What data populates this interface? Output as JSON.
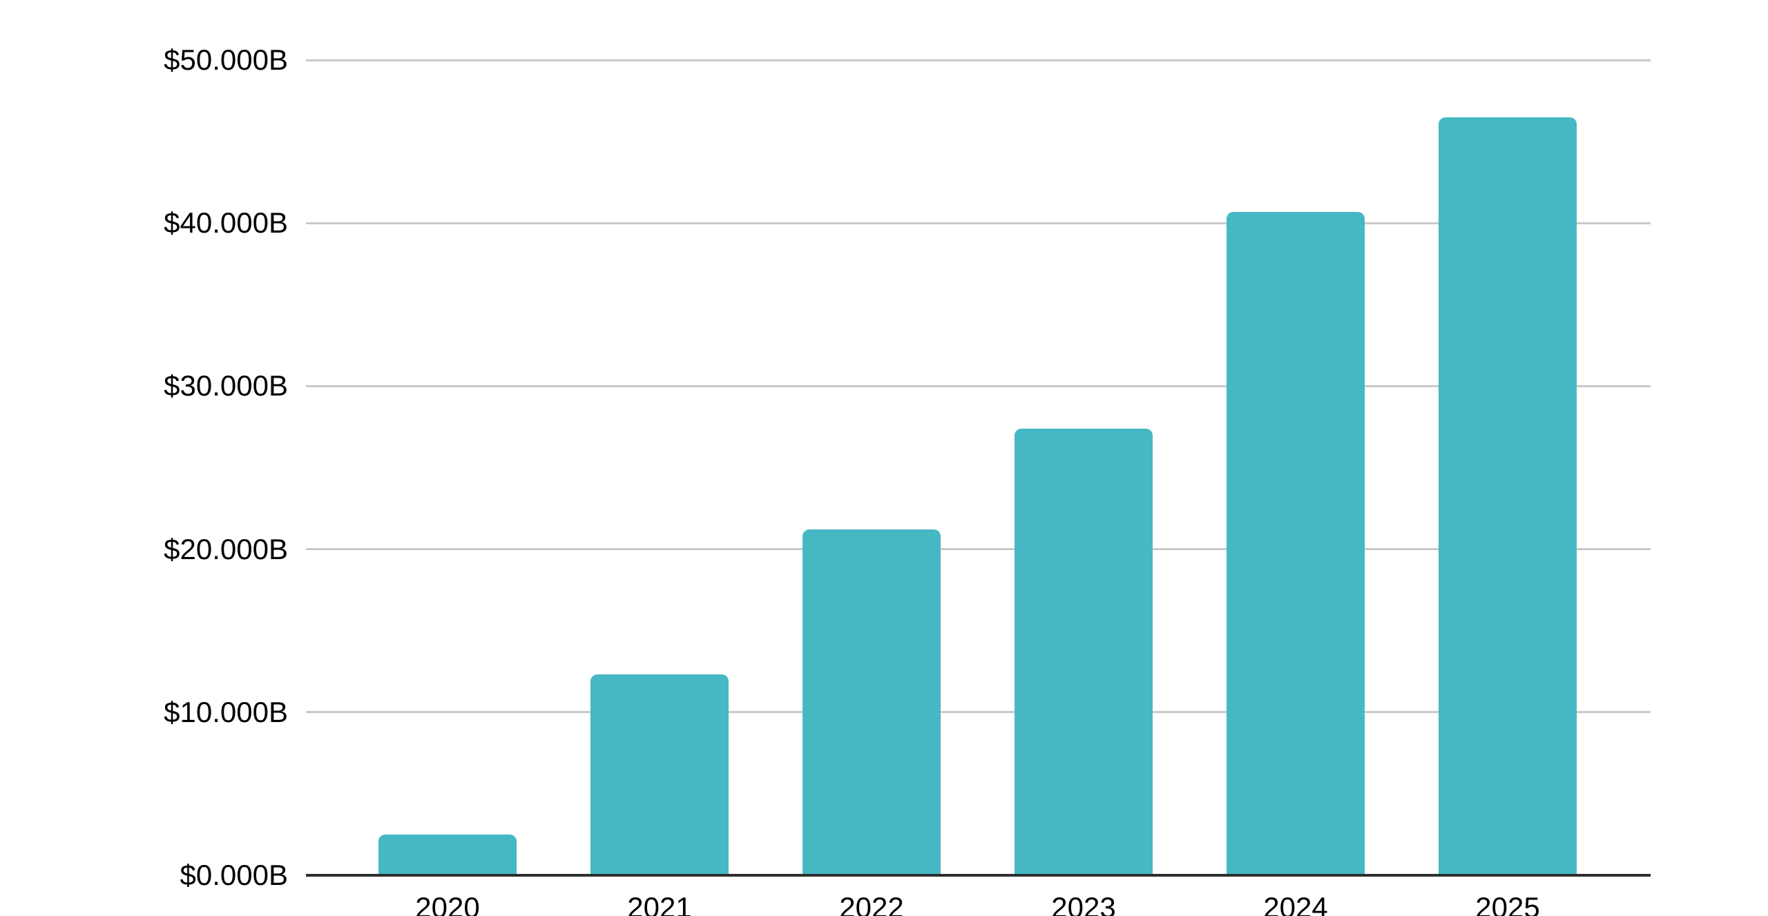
{
  "chart_data": {
    "type": "bar",
    "title": "",
    "xlabel": "",
    "ylabel": "",
    "categories": [
      "2020",
      "2021",
      "2022",
      "2023",
      "2024",
      "2025"
    ],
    "series": [
      {
        "name": "value_billions_usd",
        "values": [
          2.5,
          12.3,
          21.2,
          27.4,
          40.7,
          46.5
        ]
      }
    ],
    "ylim": [
      0,
      50
    ],
    "ytick_values": [
      0,
      10,
      20,
      30,
      40,
      50
    ],
    "ytick_labels": [
      "$0.000B",
      "$10.000B",
      "$20.000B",
      "$30.000B",
      "$40.000B",
      "$50.000B"
    ],
    "grid": true,
    "legend": false,
    "colors": {
      "bar": "#45b8c4",
      "gridline": "#c9c9c9",
      "axis_baseline": "#2e2e2e",
      "label_text": "#000000",
      "background": "#ffffff"
    }
  }
}
